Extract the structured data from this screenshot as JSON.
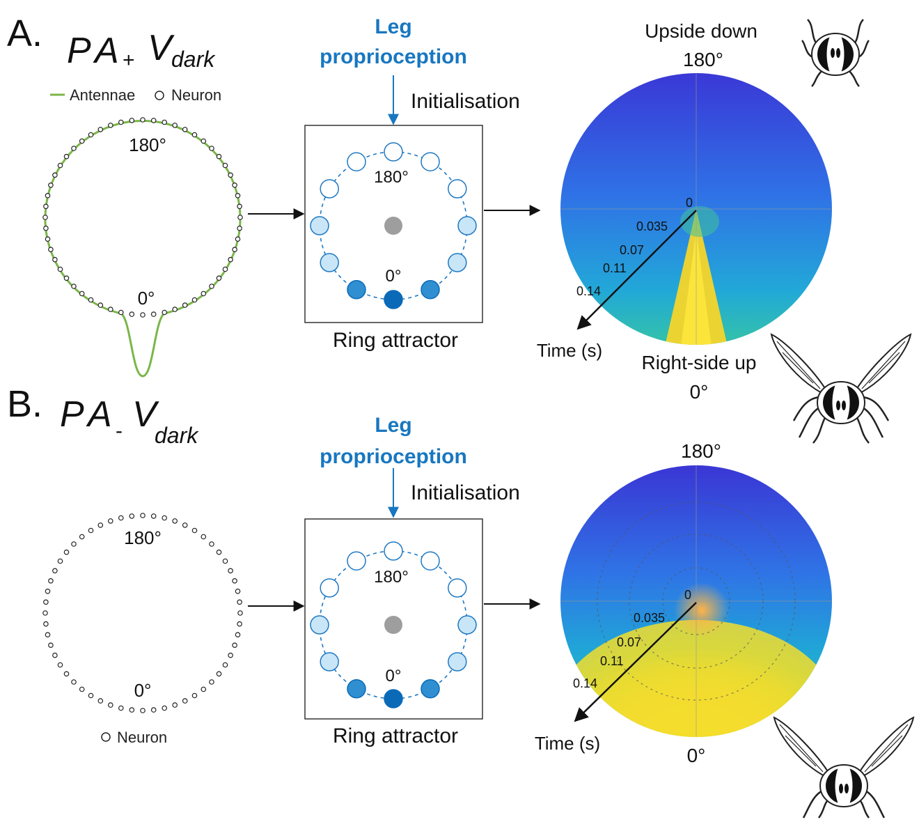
{
  "colors": {
    "antenna_curve": "#7ab648",
    "blue_label": "#1877c0",
    "ring_dashed": "#1e78c2",
    "neuron_light": "#c8e6f7",
    "neuron_mid": "#2f8fd0",
    "neuron_dark": "#0b6ab8",
    "centre_neuron": "#9e9e9e",
    "polar_low": "#2d3fd6",
    "polar_high": "#f9e21f"
  },
  "panels": [
    {
      "letter": "A.",
      "title": {
        "p": "P",
        "a": "A",
        "sign": "+",
        "v": "V",
        "sub": "dark"
      },
      "legend": {
        "antennae": "Antennae",
        "neuron": "Neuron"
      },
      "left_ring": {
        "label_top": "180°",
        "label_bottom": "0°",
        "has_antennae_curve": true
      },
      "input": {
        "line1": "Leg",
        "line2": "proprioception",
        "arrow_label": "Initialisation"
      },
      "ring_attractor": {
        "caption": "Ring attractor",
        "label_top": "180°",
        "label_bottom": "0°"
      },
      "polar": {
        "top_label_1": "Upside down",
        "top_label_2": "180°",
        "bottom_label_1": "Right-side up",
        "bottom_label_2": "0°",
        "origin_label": "0",
        "radial_ticks": [
          "0.035",
          "0.07",
          "0.11",
          "0.14"
        ],
        "axis_label": "Time (s)",
        "activity": "narrow-peak-at-0"
      },
      "icons": [
        "fly-upside-down-icon",
        "fly-right-side-up-icon"
      ]
    },
    {
      "letter": "B.",
      "title": {
        "p": "P",
        "a": "A",
        "sign": "-",
        "v": "V",
        "sub": "dark"
      },
      "legend": {
        "neuron": "Neuron"
      },
      "left_ring": {
        "label_top": "180°",
        "label_bottom": "0°",
        "has_antennae_curve": false
      },
      "input": {
        "line1": "Leg",
        "line2": "proprioception",
        "arrow_label": "Initialisation"
      },
      "ring_attractor": {
        "caption": "Ring attractor",
        "label_top": "180°",
        "label_bottom": "0°"
      },
      "polar": {
        "top_label_2": "180°",
        "bottom_label_2": "0°",
        "origin_label": "0",
        "radial_ticks": [
          "0.035",
          "0.07",
          "0.11",
          "0.14"
        ],
        "axis_label": "Time (s)",
        "activity": "broad-spread-around-0"
      },
      "icons": [
        "fly-right-side-up-icon"
      ]
    }
  ]
}
